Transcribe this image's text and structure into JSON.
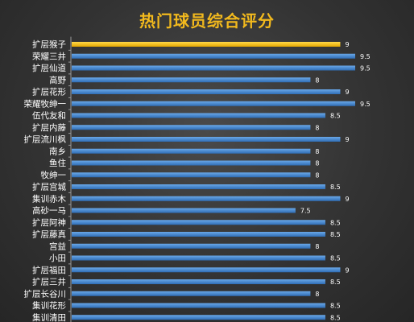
{
  "chart_data": {
    "type": "bar",
    "orientation": "horizontal",
    "title": "热门球员综合评分",
    "categories": [
      "扩层猴子",
      "荣耀三井",
      "扩层仙道",
      "高野",
      "扩层花形",
      "荣耀牧绅一",
      "伍代友和",
      "扩层内藤",
      "扩层流川枫",
      "南乡",
      "鱼住",
      "牧绅一",
      "扩层宫城",
      "集训赤木",
      "高砂一马",
      "扩层阿神",
      "扩层藤真",
      "宫益",
      "小田",
      "扩层福田",
      "扩层三井",
      "扩层长谷川",
      "集训花形",
      "集训清田"
    ],
    "values": [
      9,
      9.5,
      9.5,
      8,
      9,
      9.5,
      8.5,
      8,
      9,
      8,
      8,
      8,
      8.5,
      9,
      7.5,
      8.5,
      8.5,
      8,
      8.5,
      9,
      8.5,
      8,
      8.5,
      8.5
    ],
    "highlight_index": 0,
    "xlim": [
      0,
      9.5
    ],
    "grid": false,
    "colors": {
      "highlight": "#f5c518",
      "bar": "#4b8fd6",
      "bar_dark": "#2f6db5",
      "title": "#f2b91d",
      "text": "#ffffff"
    }
  }
}
